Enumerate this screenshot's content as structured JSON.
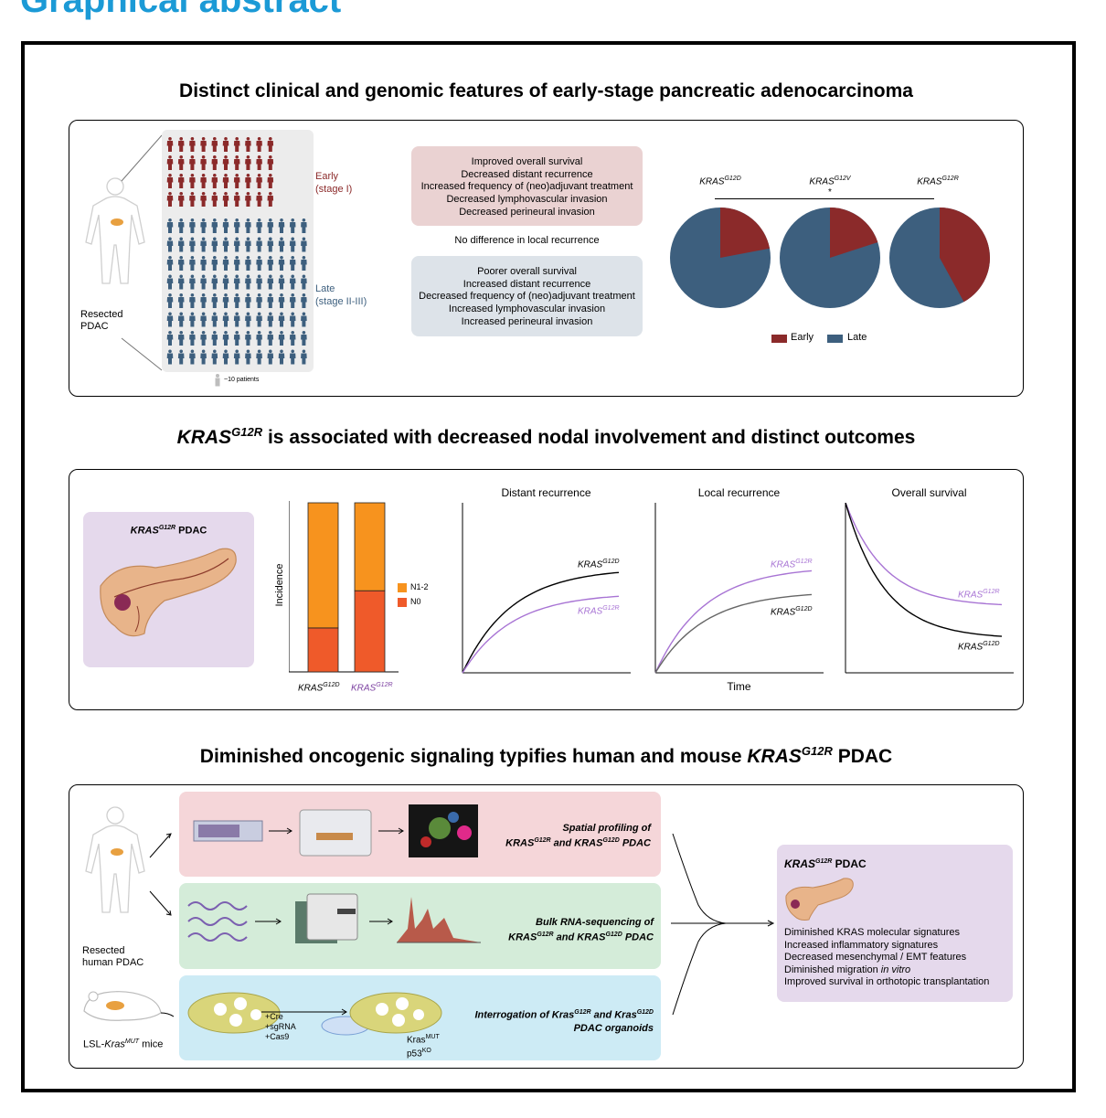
{
  "header": "Graphical abstract",
  "section1": {
    "title": "Distinct clinical and genomic features of early-stage pancreatic adenocarcinoma",
    "resected": [
      "Resected",
      "PDAC"
    ],
    "early": [
      "Early",
      "(stage I)"
    ],
    "late": [
      "Late",
      "(stage II-III)"
    ],
    "legend_patients": "~10 patients",
    "early_box": [
      "Improved overall survival",
      "Decreased distant recurrence",
      "Increased frequency of (neo)adjuvant treatment",
      "Decreased lymphovascular invasion",
      "Decreased perineural invasion"
    ],
    "middle_text": "No difference in local recurrence",
    "late_box": [
      "Poorer overall survival",
      "Increased distant recurrence",
      "Decreased frequency of (neo)adjuvant treatment",
      "Increased lymphovascular invasion",
      "Increased perineural invasion"
    ],
    "pies": [
      {
        "base": "KRAS",
        "sup": "G12D",
        "early": 0.22
      },
      {
        "base": "KRAS",
        "sup": "G12V",
        "early": 0.2
      },
      {
        "base": "KRAS",
        "sup": "G12R",
        "early": 0.42
      }
    ],
    "star": "*",
    "legend": {
      "early": "Early",
      "late": "Late"
    },
    "colors": {
      "early": "#8b2a2a",
      "late": "#3d5f7e",
      "early_box": "#ead2d2",
      "late_box": "#dde3e9"
    }
  },
  "section2": {
    "title_pre": "KRAS",
    "title_sup": "G12R",
    "title_post": " is associated with decreased nodal involvement and distinct outcomes",
    "pdac_label_base": "KRAS",
    "pdac_label_sup": "G12R",
    "pdac_label_post": " PDAC",
    "chart_data": [
      {
        "type": "bar",
        "stacked": true,
        "ylabel": "Incidence",
        "categories": [
          {
            "base": "KRAS",
            "sup": "G12D"
          },
          {
            "base": "KRAS",
            "sup": "G12R"
          }
        ],
        "series": [
          {
            "name": "N0",
            "values": [
              0.26,
              0.48
            ],
            "color": "#ef5a2a"
          },
          {
            "name": "N1-2",
            "values": [
              0.74,
              0.52
            ],
            "color": "#f7931e"
          }
        ]
      },
      {
        "type": "line",
        "title": "Distant recurrence",
        "series": [
          {
            "name": "KRAS",
            "sup": "G12D",
            "end": 0.59,
            "color": "#000000"
          },
          {
            "name": "KRAS",
            "sup": "G12R",
            "end": 0.45,
            "color": "#a874d4"
          }
        ]
      },
      {
        "type": "line",
        "title": "Local recurrence",
        "xlabel": "Time",
        "series": [
          {
            "name": "KRAS",
            "sup": "G12R",
            "end": 0.6,
            "color": "#a874d4"
          },
          {
            "name": "KRAS",
            "sup": "G12D",
            "end": 0.46,
            "color": "#666666"
          }
        ]
      },
      {
        "type": "line",
        "title": "Overall survival",
        "series": [
          {
            "name": "KRAS",
            "sup": "G12R",
            "end": 0.39,
            "color": "#a874d4"
          },
          {
            "name": "KRAS",
            "sup": "G12D",
            "end": 0.2,
            "color": "#000000"
          }
        ]
      }
    ]
  },
  "section3": {
    "title_pre": "Diminished oncogenic signaling typifies human and mouse ",
    "title_it": "KRAS",
    "title_sup": "G12R",
    "title_post": " PDAC",
    "human_label": [
      "Resected",
      "human PDAC"
    ],
    "mouse_label_pre": "LSL-",
    "mouse_label_it": "Kras",
    "mouse_label_sup": "MUT",
    "mouse_label_post": " mice",
    "spatial": {
      "line1": "Spatial profiling of",
      "a": "KRAS",
      "a_sup": "G12R",
      "and": " and ",
      "b": "KRAS",
      "b_sup": "G12D",
      "end": " PDAC"
    },
    "bulk": {
      "line1": "Bulk RNA-sequencing of",
      "a": "KRAS",
      "a_sup": "G12R",
      "and": " and ",
      "b": "KRAS",
      "b_sup": "G12D",
      "end": " PDAC"
    },
    "organoid": {
      "line1a": "Interrogation of Kras",
      "line1a_sup": "G12R",
      "line1b": " and Kras",
      "line1b_sup": "G12D",
      "line2": "PDAC organoids"
    },
    "cre": [
      "+Cre",
      "+sgRNA",
      "+Cas9"
    ],
    "kras_mut": {
      "base": "Kras",
      "sup": "MUT"
    },
    "p53": {
      "base": "p53",
      "sup": "KO"
    },
    "result": {
      "title_base": "KRAS",
      "title_sup": "G12R",
      "title_post": " PDAC",
      "items": [
        "Diminished KRAS molecular signatures",
        "Increased inflammatory signatures",
        "Decreased mesenchymal / EMT features"
      ],
      "item4_pre": "Diminished migration ",
      "item4_it": "in vitro",
      "item5": "Improved survival in orthotopic transplantation"
    },
    "colors": {
      "spatial": "#f5d6d9",
      "bulk": "#d4ecd9",
      "organoid": "#cdebf5",
      "result": "#e5d9ec"
    }
  }
}
